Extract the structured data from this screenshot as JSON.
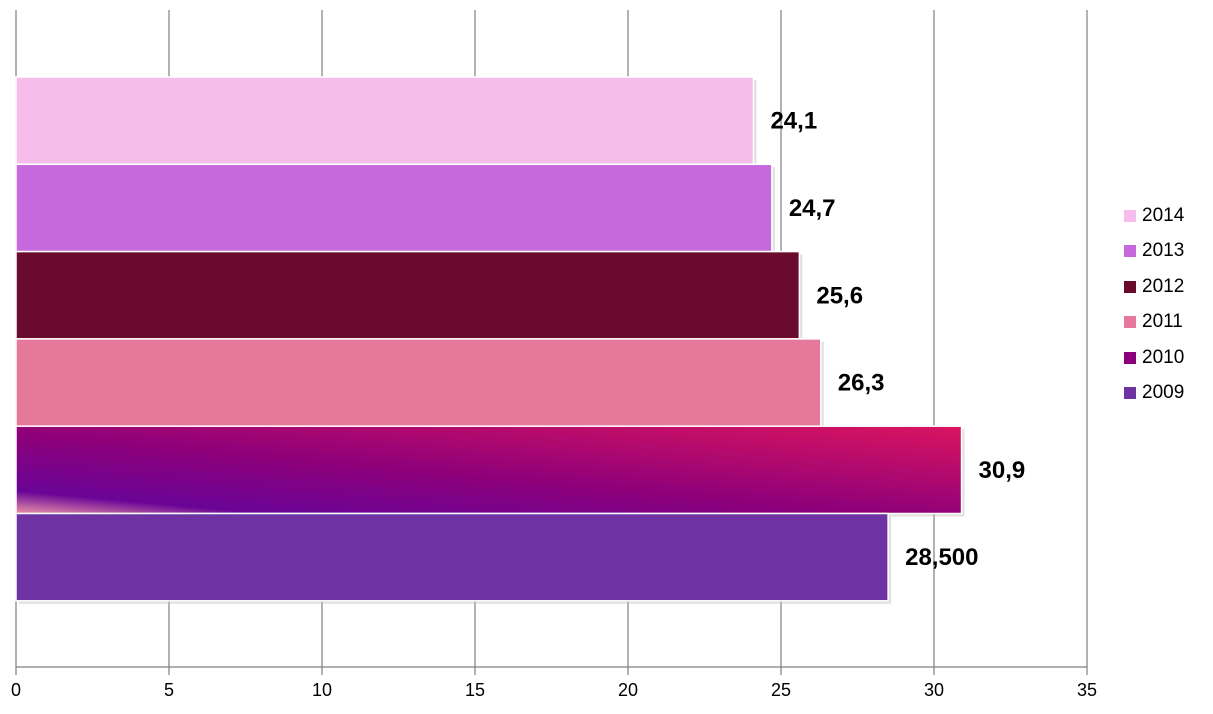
{
  "chart_data": {
    "type": "bar",
    "orientation": "horizontal",
    "xlim": [
      0,
      35
    ],
    "x_ticks": [
      0,
      5,
      10,
      15,
      20,
      25,
      30,
      35
    ],
    "grid": "vertical",
    "legend_position": "right",
    "series": [
      {
        "name": "2014",
        "value": 24.1,
        "label": "24,1",
        "color": "#f6bdeb"
      },
      {
        "name": "2013",
        "value": 24.7,
        "label": "24,7",
        "color": "#c669dc"
      },
      {
        "name": "2012",
        "value": 25.6,
        "label": "25,6",
        "color": "#6a0a2c"
      },
      {
        "name": "2011",
        "value": 26.3,
        "label": "26,3",
        "color": "#e5789b"
      },
      {
        "name": "2010",
        "value": 30.9,
        "label": "30,9",
        "color": "#8b007a"
      },
      {
        "name": "2009",
        "value": 28.5,
        "label": "28,500",
        "color": "#6e32a2"
      }
    ]
  }
}
